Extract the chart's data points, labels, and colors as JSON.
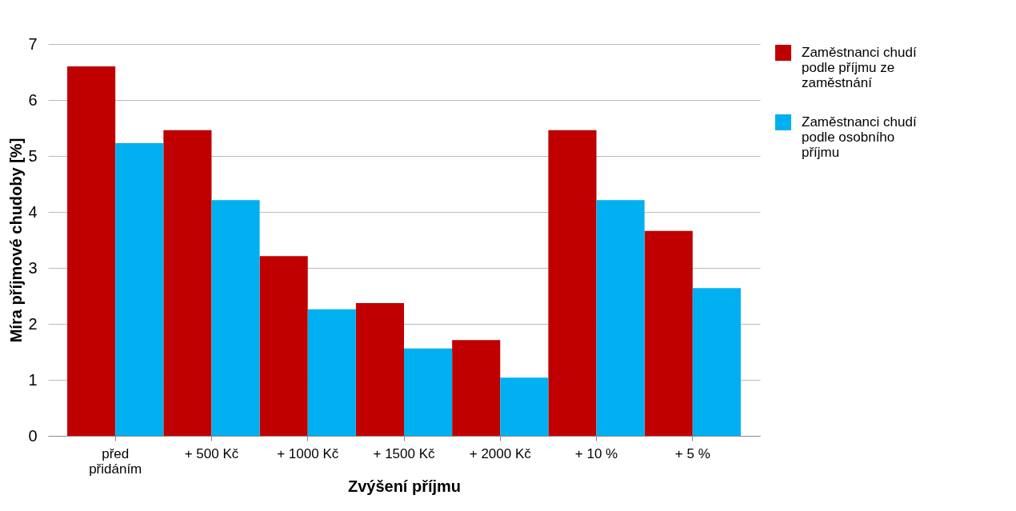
{
  "chart_data": {
    "type": "bar",
    "xlabel": "Zvýšení příjmu",
    "ylabel": "Míra příjmové chudoby [%]",
    "categories": [
      "před přidáním",
      "+ 500 Kč",
      "+ 1000 Kč",
      "+ 1500 Kč",
      "+ 2000 Kč",
      "+ 10 %",
      "+ 5 %"
    ],
    "series": [
      {
        "name": "Zaměstnanci chudí podle příjmu ze zaměstnání",
        "color": "#c00000",
        "values": [
          6.6,
          5.46,
          3.21,
          2.37,
          1.71,
          5.46,
          3.66
        ]
      },
      {
        "name": "Zaměstnanci chudí podle osobního příjmu",
        "color": "#00b0f0",
        "values": [
          5.23,
          4.21,
          2.26,
          1.56,
          1.04,
          4.21,
          2.64
        ]
      }
    ],
    "ylim": [
      0,
      7
    ],
    "yticks": [
      0,
      1,
      2,
      3,
      4,
      5,
      6,
      7
    ],
    "grid": "y",
    "legend": "right"
  }
}
